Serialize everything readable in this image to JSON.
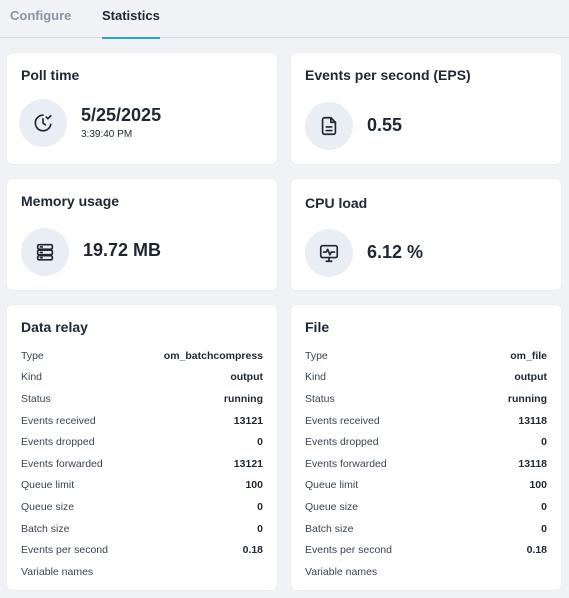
{
  "tabs": [
    {
      "label": "Configure",
      "active": false
    },
    {
      "label": "Statistics",
      "active": true
    }
  ],
  "colors": {
    "accent": "#2ca3d8",
    "background": "#f0f2f5",
    "card": "#ffffff",
    "icon_bg": "#e9eef4"
  },
  "poll_time": {
    "title": "Poll time",
    "date": "5/25/2025",
    "time": "3:39:40 PM",
    "icon": "clock-check-icon"
  },
  "eps": {
    "title": "Events per second (EPS)",
    "value": "0.55",
    "icon": "document-icon"
  },
  "memory": {
    "title": "Memory usage",
    "value": "19.72 MB",
    "icon": "server-icon"
  },
  "cpu": {
    "title": "CPU load",
    "value": "6.12 %",
    "icon": "monitor-pulse-icon"
  },
  "data_relay": {
    "title": "Data relay",
    "rows": [
      {
        "label": "Type",
        "value": "om_batchcompress"
      },
      {
        "label": "Kind",
        "value": "output"
      },
      {
        "label": "Status",
        "value": "running"
      },
      {
        "label": "Events received",
        "value": "13121"
      },
      {
        "label": "Events dropped",
        "value": "0"
      },
      {
        "label": "Events forwarded",
        "value": "13121"
      },
      {
        "label": "Queue limit",
        "value": "100"
      },
      {
        "label": "Queue size",
        "value": "0"
      },
      {
        "label": "Batch size",
        "value": "0"
      },
      {
        "label": "Events per second",
        "value": "0.18"
      },
      {
        "label": "Variable names",
        "value": ""
      }
    ]
  },
  "file": {
    "title": "File",
    "rows": [
      {
        "label": "Type",
        "value": "om_file"
      },
      {
        "label": "Kind",
        "value": "output"
      },
      {
        "label": "Status",
        "value": "running"
      },
      {
        "label": "Events received",
        "value": "13118"
      },
      {
        "label": "Events dropped",
        "value": "0"
      },
      {
        "label": "Events forwarded",
        "value": "13118"
      },
      {
        "label": "Queue limit",
        "value": "100"
      },
      {
        "label": "Queue size",
        "value": "0"
      },
      {
        "label": "Batch size",
        "value": "0"
      },
      {
        "label": "Events per second",
        "value": "0.18"
      },
      {
        "label": "Variable names",
        "value": ""
      }
    ]
  }
}
